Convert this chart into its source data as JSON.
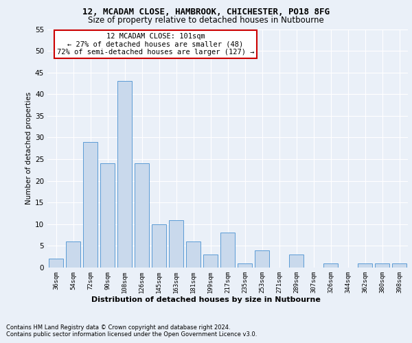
{
  "title1": "12, MCADAM CLOSE, HAMBROOK, CHICHESTER, PO18 8FG",
  "title2": "Size of property relative to detached houses in Nutbourne",
  "xlabel": "Distribution of detached houses by size in Nutbourne",
  "ylabel": "Number of detached properties",
  "categories": [
    "36sqm",
    "54sqm",
    "72sqm",
    "90sqm",
    "108sqm",
    "126sqm",
    "145sqm",
    "163sqm",
    "181sqm",
    "199sqm",
    "217sqm",
    "235sqm",
    "253sqm",
    "271sqm",
    "289sqm",
    "307sqm",
    "326sqm",
    "344sqm",
    "362sqm",
    "380sqm",
    "398sqm"
  ],
  "values": [
    2,
    6,
    29,
    24,
    43,
    24,
    10,
    11,
    6,
    3,
    8,
    1,
    4,
    0,
    3,
    0,
    1,
    0,
    1,
    1,
    1
  ],
  "bar_color": "#c9d9ec",
  "bar_edge_color": "#5b9bd5",
  "annotation_line1": "12 MCADAM CLOSE: 101sqm",
  "annotation_line2": "← 27% of detached houses are smaller (48)",
  "annotation_line3": "72% of semi-detached houses are larger (127) →",
  "annotation_box_color": "#ffffff",
  "annotation_box_edge_color": "#cc0000",
  "bg_color": "#eaf0f8",
  "plot_bg_color": "#eaf0f8",
  "grid_color": "#ffffff",
  "ylim": [
    0,
    55
  ],
  "yticks": [
    0,
    5,
    10,
    15,
    20,
    25,
    30,
    35,
    40,
    45,
    50,
    55
  ],
  "footnote1": "Contains HM Land Registry data © Crown copyright and database right 2024.",
  "footnote2": "Contains public sector information licensed under the Open Government Licence v3.0."
}
